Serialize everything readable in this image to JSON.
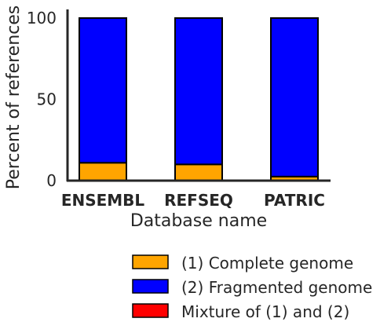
{
  "chart_data": {
    "type": "bar",
    "stacked": true,
    "title": "",
    "xlabel": "Database name",
    "ylabel": "Percent of references",
    "ylim": [
      0,
      100
    ],
    "yticks": [
      0,
      50,
      100
    ],
    "categories": [
      "ENSEMBL",
      "REFSEQ",
      "PATRIC"
    ],
    "series": [
      {
        "name": "(1) Complete genome",
        "color": "#ffa500",
        "values": [
          11,
          10,
          2.5
        ]
      },
      {
        "name": "(2) Fragmented genome",
        "color": "#0000ff",
        "values": [
          89,
          90,
          97.5
        ]
      },
      {
        "name": "Mixture of (1) and (2)",
        "color": "#ff0000",
        "values": [
          0,
          0,
          0
        ]
      }
    ],
    "grid": false,
    "legend_position": "bottom-right"
  }
}
